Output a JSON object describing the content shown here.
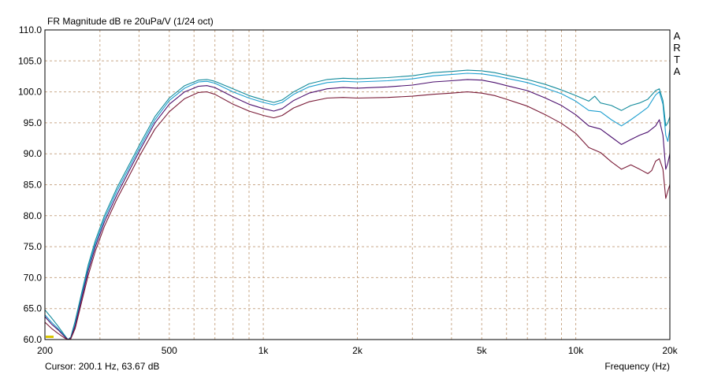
{
  "chart_data": {
    "type": "line",
    "title": "FR Magnitude dB re 20uPa/V (1/24 oct)",
    "brand": "ARTA",
    "xlabel": "Frequency (Hz)",
    "cursor_readout": "Cursor: 200.1 Hz, 63.67 dB",
    "x_scale": "log",
    "xlim": [
      200,
      20000
    ],
    "ylim": [
      60,
      110
    ],
    "grid": true,
    "x_tick_labels": [
      {
        "value": 200,
        "label": "200"
      },
      {
        "value": 500,
        "label": "500"
      },
      {
        "value": 1000,
        "label": "1k"
      },
      {
        "value": 2000,
        "label": "2k"
      },
      {
        "value": 5000,
        "label": "5k"
      },
      {
        "value": 10000,
        "label": "10k"
      },
      {
        "value": 20000,
        "label": "20k"
      }
    ],
    "y_tick_labels": [
      "110.0",
      "105.0",
      "100.0",
      "95.0",
      "90.0",
      "85.0",
      "80.0",
      "75.0",
      "70.0",
      "65.0",
      "60.0"
    ],
    "series": [
      {
        "color": "#1e9fd0",
        "points": [
          [
            200,
            64.0
          ],
          [
            210,
            62.8
          ],
          [
            220,
            61.8
          ],
          [
            232,
            60.5
          ],
          [
            237,
            60
          ],
          [
            242,
            60.3
          ],
          [
            250,
            62.5
          ],
          [
            262,
            67.0
          ],
          [
            275,
            71.5
          ],
          [
            290,
            75.5
          ],
          [
            310,
            79.5
          ],
          [
            340,
            84.0
          ],
          [
            370,
            87.5
          ],
          [
            400,
            90.8
          ],
          [
            450,
            95.5
          ],
          [
            500,
            98.6
          ],
          [
            560,
            100.6
          ],
          [
            620,
            101.6
          ],
          [
            660,
            101.7
          ],
          [
            700,
            101.4
          ],
          [
            800,
            100.0
          ],
          [
            900,
            99.0
          ],
          [
            1000,
            98.3
          ],
          [
            1080,
            97.9
          ],
          [
            1150,
            98.3
          ],
          [
            1250,
            99.6
          ],
          [
            1400,
            100.8
          ],
          [
            1600,
            101.5
          ],
          [
            1800,
            101.7
          ],
          [
            2000,
            101.6
          ],
          [
            2500,
            101.8
          ],
          [
            3000,
            102.1
          ],
          [
            3500,
            102.6
          ],
          [
            4000,
            102.8
          ],
          [
            4500,
            103.0
          ],
          [
            5000,
            102.9
          ],
          [
            5500,
            102.6
          ],
          [
            6000,
            102.2
          ],
          [
            7000,
            101.5
          ],
          [
            8000,
            100.6
          ],
          [
            9000,
            99.7
          ],
          [
            10000,
            98.5
          ],
          [
            11000,
            97.0
          ],
          [
            12000,
            96.8
          ],
          [
            13000,
            95.5
          ],
          [
            14000,
            94.5
          ],
          [
            15000,
            95.5
          ],
          [
            16000,
            96.5
          ],
          [
            17000,
            97.5
          ],
          [
            18000,
            99.5
          ],
          [
            18500,
            100.0
          ],
          [
            19000,
            98.0
          ],
          [
            19400,
            93.0
          ],
          [
            19700,
            92.0
          ],
          [
            20000,
            94.0
          ]
        ]
      },
      {
        "color": "#138b9c",
        "points": [
          [
            200,
            64.8
          ],
          [
            210,
            63.5
          ],
          [
            220,
            62.2
          ],
          [
            232,
            60.6
          ],
          [
            237,
            60
          ],
          [
            242,
            60.4
          ],
          [
            250,
            63.0
          ],
          [
            262,
            67.5
          ],
          [
            275,
            72.0
          ],
          [
            290,
            76.0
          ],
          [
            310,
            80.0
          ],
          [
            340,
            84.5
          ],
          [
            370,
            88.0
          ],
          [
            400,
            91.3
          ],
          [
            450,
            96.0
          ],
          [
            500,
            99.0
          ],
          [
            560,
            101.0
          ],
          [
            620,
            101.9
          ],
          [
            660,
            102.0
          ],
          [
            700,
            101.7
          ],
          [
            800,
            100.5
          ],
          [
            900,
            99.4
          ],
          [
            1000,
            98.7
          ],
          [
            1080,
            98.3
          ],
          [
            1150,
            98.7
          ],
          [
            1250,
            100.0
          ],
          [
            1400,
            101.3
          ],
          [
            1600,
            102.0
          ],
          [
            1800,
            102.2
          ],
          [
            2000,
            102.1
          ],
          [
            2500,
            102.3
          ],
          [
            3000,
            102.6
          ],
          [
            3500,
            103.1
          ],
          [
            4000,
            103.3
          ],
          [
            4500,
            103.5
          ],
          [
            5000,
            103.4
          ],
          [
            5500,
            103.1
          ],
          [
            6000,
            102.7
          ],
          [
            7000,
            102.0
          ],
          [
            8000,
            101.2
          ],
          [
            9000,
            100.3
          ],
          [
            10000,
            99.4
          ],
          [
            11000,
            98.5
          ],
          [
            11500,
            99.3
          ],
          [
            12000,
            98.2
          ],
          [
            13000,
            97.8
          ],
          [
            14000,
            97.0
          ],
          [
            15000,
            97.8
          ],
          [
            16000,
            98.2
          ],
          [
            17000,
            98.8
          ],
          [
            18000,
            100.2
          ],
          [
            18500,
            100.5
          ],
          [
            19000,
            98.6
          ],
          [
            19400,
            94.5
          ],
          [
            19700,
            95.0
          ],
          [
            20000,
            96.0
          ]
        ]
      },
      {
        "color": "#4b0f6e",
        "points": [
          [
            200,
            63.7
          ],
          [
            210,
            62.5
          ],
          [
            220,
            61.6
          ],
          [
            232,
            60.4
          ],
          [
            237,
            60
          ],
          [
            242,
            60.2
          ],
          [
            250,
            62.2
          ],
          [
            262,
            66.6
          ],
          [
            275,
            71.0
          ],
          [
            290,
            75.0
          ],
          [
            310,
            79.0
          ],
          [
            340,
            83.4
          ],
          [
            370,
            87.0
          ],
          [
            400,
            90.3
          ],
          [
            450,
            95.0
          ],
          [
            500,
            98.0
          ],
          [
            560,
            100.0
          ],
          [
            620,
            100.9
          ],
          [
            660,
            101.0
          ],
          [
            700,
            100.7
          ],
          [
            800,
            99.2
          ],
          [
            900,
            98.0
          ],
          [
            1000,
            97.3
          ],
          [
            1080,
            96.9
          ],
          [
            1150,
            97.3
          ],
          [
            1250,
            98.6
          ],
          [
            1400,
            99.8
          ],
          [
            1600,
            100.5
          ],
          [
            1800,
            100.7
          ],
          [
            2000,
            100.6
          ],
          [
            2500,
            100.8
          ],
          [
            3000,
            101.1
          ],
          [
            3500,
            101.6
          ],
          [
            4000,
            101.8
          ],
          [
            4500,
            102.0
          ],
          [
            5000,
            101.9
          ],
          [
            5500,
            101.5
          ],
          [
            6000,
            101.0
          ],
          [
            7000,
            100.2
          ],
          [
            8000,
            99.0
          ],
          [
            9000,
            97.8
          ],
          [
            10000,
            96.3
          ],
          [
            11000,
            94.5
          ],
          [
            12000,
            94.0
          ],
          [
            13000,
            92.7
          ],
          [
            14000,
            91.5
          ],
          [
            15000,
            92.3
          ],
          [
            16000,
            93.0
          ],
          [
            17000,
            93.5
          ],
          [
            18000,
            94.5
          ],
          [
            18500,
            95.5
          ],
          [
            19000,
            93.0
          ],
          [
            19400,
            87.5
          ],
          [
            19700,
            88.5
          ],
          [
            20000,
            90.0
          ]
        ]
      },
      {
        "color": "#7a1c38",
        "points": [
          [
            200,
            62.8
          ],
          [
            210,
            61.8
          ],
          [
            220,
            61.0
          ],
          [
            232,
            60.2
          ],
          [
            237,
            60
          ],
          [
            242,
            60.1
          ],
          [
            250,
            61.8
          ],
          [
            262,
            66.0
          ],
          [
            275,
            70.3
          ],
          [
            290,
            74.3
          ],
          [
            310,
            78.3
          ],
          [
            340,
            82.7
          ],
          [
            370,
            86.2
          ],
          [
            400,
            89.5
          ],
          [
            450,
            94.0
          ],
          [
            500,
            96.8
          ],
          [
            560,
            98.9
          ],
          [
            620,
            99.9
          ],
          [
            660,
            100.0
          ],
          [
            700,
            99.6
          ],
          [
            800,
            98.0
          ],
          [
            900,
            96.9
          ],
          [
            1000,
            96.2
          ],
          [
            1080,
            95.8
          ],
          [
            1150,
            96.2
          ],
          [
            1250,
            97.4
          ],
          [
            1400,
            98.4
          ],
          [
            1600,
            99.0
          ],
          [
            1800,
            99.1
          ],
          [
            2000,
            99.0
          ],
          [
            2500,
            99.1
          ],
          [
            3000,
            99.3
          ],
          [
            3500,
            99.6
          ],
          [
            4000,
            99.8
          ],
          [
            4500,
            100.0
          ],
          [
            5000,
            99.8
          ],
          [
            5500,
            99.4
          ],
          [
            6000,
            98.8
          ],
          [
            7000,
            97.7
          ],
          [
            8000,
            96.3
          ],
          [
            9000,
            94.9
          ],
          [
            10000,
            93.3
          ],
          [
            11000,
            91.0
          ],
          [
            12000,
            90.2
          ],
          [
            13000,
            88.7
          ],
          [
            14000,
            87.5
          ],
          [
            15000,
            88.2
          ],
          [
            16000,
            87.5
          ],
          [
            17000,
            86.8
          ],
          [
            17500,
            87.3
          ],
          [
            18000,
            88.8
          ],
          [
            18500,
            89.2
          ],
          [
            19000,
            87.5
          ],
          [
            19400,
            82.8
          ],
          [
            19700,
            84.0
          ],
          [
            20000,
            85.0
          ]
        ]
      }
    ]
  }
}
